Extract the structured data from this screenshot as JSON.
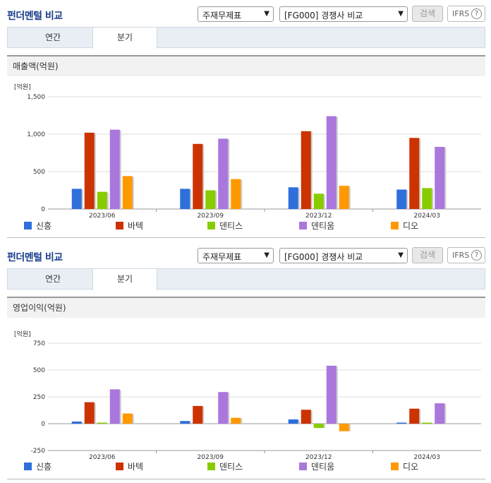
{
  "panels": [
    {
      "title": "펀더멘털 비교",
      "select1": "주재무제표",
      "select2": "[FG000] 경쟁사 비교",
      "search_label": "검색",
      "ifrs_label": "IFRS",
      "ifrs_help": "?",
      "tabs": [
        "연간",
        "분기"
      ],
      "subhead": "매출액(억원)",
      "unit": "[억원]"
    },
    {
      "title": "펀더멘털 비교",
      "select1": "주재무제표",
      "select2": "[FG000] 경쟁사 비교",
      "search_label": "검색",
      "ifrs_label": "IFRS",
      "ifrs_help": "?",
      "tabs": [
        "연간",
        "분기"
      ],
      "subhead": "영업이익(억원)",
      "unit": "[억원]"
    }
  ],
  "colors": {
    "신흥": "#2e6fdc",
    "바텍": "#cc3300",
    "덴티스": "#88cc00",
    "덴티움": "#aa77dd",
    "디오": "#ff9900"
  },
  "chart_data": [
    {
      "type": "bar",
      "title": "매출액(억원)",
      "ylabel": "[억원]",
      "ylim": [
        0,
        1500
      ],
      "yticks": [
        0,
        500,
        1000,
        1500
      ],
      "ytick_labels": [
        "0",
        "500",
        "1,000",
        "1,500"
      ],
      "categories": [
        "2023/06",
        "2023/09",
        "2023/12",
        "2024/03"
      ],
      "series": [
        {
          "name": "신흥",
          "values": [
            270,
            270,
            290,
            260
          ]
        },
        {
          "name": "바텍",
          "values": [
            1020,
            870,
            1040,
            950
          ]
        },
        {
          "name": "덴티스",
          "values": [
            230,
            250,
            205,
            280
          ]
        },
        {
          "name": "덴티움",
          "values": [
            1060,
            940,
            1240,
            830
          ]
        },
        {
          "name": "디오",
          "values": [
            440,
            400,
            310,
            null
          ]
        }
      ],
      "legend": "bottom"
    },
    {
      "type": "bar",
      "title": "영업이익(억원)",
      "ylabel": "[억원]",
      "ylim": [
        -250,
        750
      ],
      "yticks": [
        -250,
        0,
        250,
        500,
        750
      ],
      "ytick_labels": [
        "-250",
        "0",
        "250",
        "500",
        "750"
      ],
      "categories": [
        "2023/06",
        "2023/09",
        "2023/12",
        "2024/03"
      ],
      "series": [
        {
          "name": "신흥",
          "values": [
            20,
            25,
            40,
            10
          ]
        },
        {
          "name": "바텍",
          "values": [
            200,
            165,
            130,
            140
          ]
        },
        {
          "name": "덴티스",
          "values": [
            10,
            null,
            -40,
            10
          ]
        },
        {
          "name": "덴티움",
          "values": [
            320,
            295,
            540,
            190
          ]
        },
        {
          "name": "디오",
          "values": [
            95,
            55,
            -70,
            null
          ]
        }
      ],
      "legend": "bottom"
    }
  ]
}
